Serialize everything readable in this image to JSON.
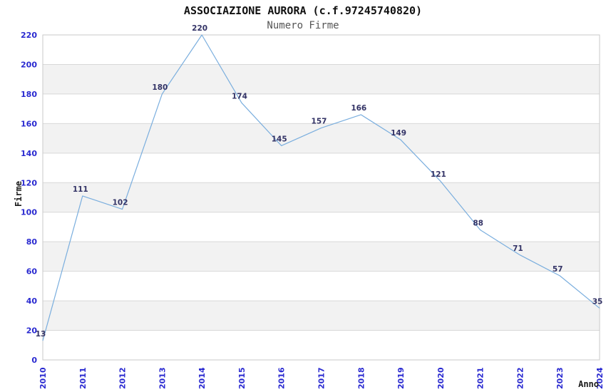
{
  "title": "ASSOCIAZIONE AURORA (c.f.97245740820)",
  "subtitle": "Numero Firme",
  "chart_data": {
    "type": "line",
    "x": [
      2010,
      2011,
      2012,
      2013,
      2014,
      2015,
      2016,
      2017,
      2018,
      2019,
      2020,
      2021,
      2022,
      2023,
      2024
    ],
    "series": [
      {
        "name": "Numero Firme",
        "values": [
          13,
          111,
          102,
          180,
          220,
          174,
          145,
          157,
          166,
          149,
          121,
          88,
          71,
          57,
          35
        ]
      }
    ],
    "title": "ASSOCIAZIONE AURORA (c.f.97245740820)",
    "subtitle": "Numero Firme",
    "xlabel": "Anno",
    "ylabel": "Firme",
    "ylim": [
      0,
      220
    ],
    "ytick_step": 20,
    "grid": true,
    "alternating_bands": true,
    "legend_position": "none",
    "colors": {
      "line": "#7aaede",
      "tick_label": "#2929d0",
      "data_label": "#333366",
      "band": "#f2f2f2",
      "gridline": "#d8d8d8",
      "plot_border": "#c9c9c9",
      "title": "#111111",
      "subtitle": "#555555",
      "background": "#ffffff"
    }
  }
}
